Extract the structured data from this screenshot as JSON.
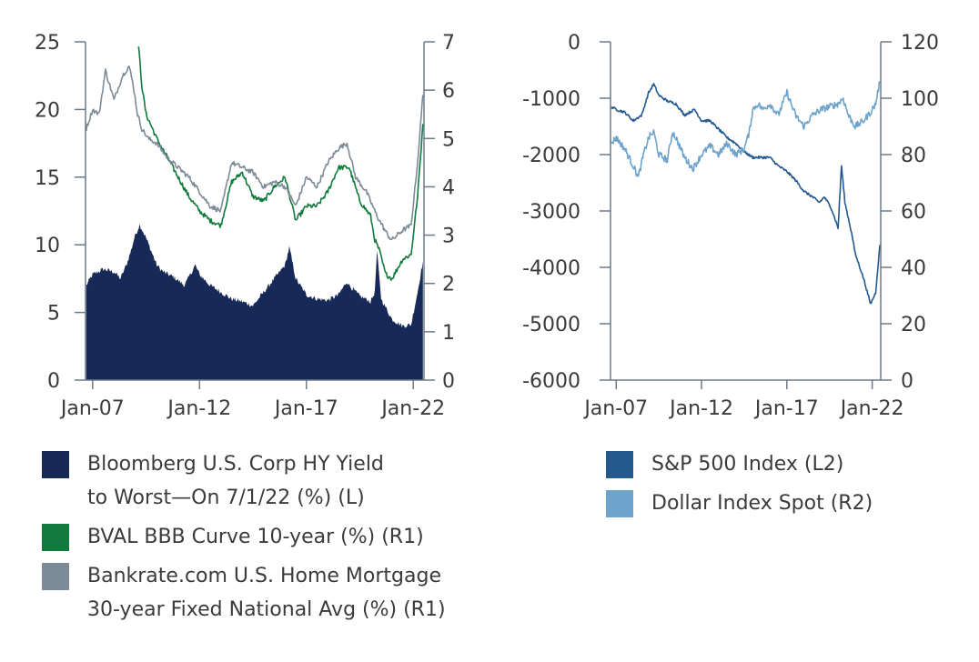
{
  "colors": {
    "hy_yield": "#172a57",
    "bval": "#117a3d",
    "mortgage": "#7d8b98",
    "sp500": "#24598e",
    "dollar": "#6ea3cb",
    "axis": "#6d7b88"
  },
  "chart_data": [
    {
      "type": "line",
      "x_ticks": [
        "Jan-07",
        "Jan-12",
        "Jan-17",
        "Jan-22"
      ],
      "x_range": [
        "2006-09",
        "2022-07"
      ],
      "y_left": {
        "range": [
          0,
          25
        ],
        "ticks": [
          "0",
          "5",
          "10",
          "15",
          "20",
          "25"
        ]
      },
      "y_right": {
        "range": [
          0,
          7
        ],
        "ticks": [
          "0",
          "1",
          "2",
          "3",
          "4",
          "5",
          "6",
          "7"
        ]
      },
      "series": [
        {
          "name": "Bloomberg U.S. Corp HY Yield to Worst—On 7/1/22 (%) (L)",
          "axis": "left",
          "style": "area",
          "x": [
            2006.7,
            2007.0,
            2007.5,
            2008.0,
            2008.3,
            2008.6,
            2008.8,
            2008.95,
            2009.2,
            2009.5,
            2010.0,
            2010.3,
            2010.8,
            2011.3,
            2011.6,
            2011.8,
            2012.0,
            2012.5,
            2013.0,
            2013.5,
            2014.0,
            2014.5,
            2015.0,
            2015.5,
            2016.0,
            2016.2,
            2016.5,
            2017.0,
            2017.5,
            2018.0,
            2018.5,
            2018.9,
            2019.0,
            2019.5,
            2019.9,
            2020.0,
            2020.2,
            2020.3,
            2020.5,
            2021.0,
            2021.5,
            2021.9,
            2022.2,
            2022.45
          ],
          "y": [
            7.0,
            7.8,
            8.2,
            8.0,
            7.5,
            8.6,
            9.6,
            10.5,
            11.5,
            10.5,
            8.5,
            8.0,
            7.6,
            7.0,
            7.9,
            8.5,
            7.8,
            7.0,
            6.5,
            6.0,
            5.8,
            5.5,
            6.5,
            7.5,
            8.5,
            9.8,
            7.5,
            6.3,
            6.0,
            5.9,
            6.3,
            7.3,
            7.0,
            6.2,
            5.9,
            5.8,
            6.5,
            9.5,
            6.0,
            4.5,
            4.0,
            4.1,
            6.5,
            8.8
          ]
        },
        {
          "name": "BVAL BBB Curve 10-year (%) (R1)",
          "axis": "right",
          "style": "line",
          "x": [
            2009.15,
            2009.3,
            2009.5,
            2010.0,
            2010.5,
            2011.0,
            2011.5,
            2012.0,
            2012.5,
            2013.0,
            2013.5,
            2014.0,
            2014.5,
            2015.0,
            2015.5,
            2016.0,
            2016.5,
            2017.0,
            2017.5,
            2018.0,
            2018.5,
            2019.0,
            2019.5,
            2020.0,
            2020.2,
            2020.4,
            2020.7,
            2021.0,
            2021.5,
            2021.9,
            2022.2,
            2022.45
          ],
          "y": [
            6.9,
            6.1,
            5.5,
            5.0,
            4.6,
            4.2,
            3.8,
            3.5,
            3.3,
            3.2,
            4.1,
            4.3,
            3.8,
            3.7,
            4.0,
            4.2,
            3.3,
            3.6,
            3.6,
            3.9,
            4.4,
            4.4,
            3.7,
            3.4,
            2.9,
            2.7,
            2.2,
            2.1,
            2.5,
            2.6,
            3.8,
            5.3
          ]
        },
        {
          "name": "Bankrate.com U.S. Home Mortgage 30-year Fixed National Avg (%) (R1)",
          "axis": "right",
          "style": "line",
          "x": [
            2006.7,
            2007.0,
            2007.3,
            2007.6,
            2008.0,
            2008.4,
            2008.7,
            2008.9,
            2009.1,
            2009.3,
            2009.6,
            2010.0,
            2010.5,
            2011.0,
            2011.5,
            2012.0,
            2012.5,
            2013.0,
            2013.5,
            2014.0,
            2014.5,
            2015.0,
            2015.5,
            2016.0,
            2016.5,
            2017.0,
            2017.5,
            2018.0,
            2018.5,
            2018.9,
            2019.3,
            2019.8,
            2020.3,
            2020.8,
            2021.0,
            2021.5,
            2021.9,
            2022.2,
            2022.45
          ],
          "y": [
            5.2,
            5.6,
            5.5,
            6.4,
            5.8,
            6.3,
            6.5,
            6.1,
            5.5,
            5.2,
            5.0,
            4.9,
            4.6,
            4.4,
            4.2,
            3.9,
            3.6,
            3.5,
            4.5,
            4.4,
            4.3,
            4.0,
            4.1,
            4.0,
            3.6,
            4.2,
            4.0,
            4.5,
            4.8,
            4.9,
            4.2,
            3.9,
            3.4,
            3.0,
            2.9,
            3.1,
            3.2,
            4.5,
            5.9
          ]
        }
      ]
    },
    {
      "type": "line",
      "x_ticks": [
        "Jan-07",
        "Jan-12",
        "Jan-17",
        "Jan-22"
      ],
      "x_range": [
        "2006-09",
        "2022-07"
      ],
      "y_left": {
        "range": [
          -6000,
          0
        ],
        "ticks": [
          "-6000",
          "-5000",
          "-4000",
          "-3000",
          "-2000",
          "-1000",
          "0"
        ]
      },
      "y_right": {
        "range": [
          0,
          120
        ],
        "ticks": [
          "0",
          "20",
          "40",
          "60",
          "80",
          "100",
          "120"
        ]
      },
      "series": [
        {
          "name": "S&P 500 Index (L2)",
          "axis": "left",
          "style": "line",
          "x": [
            2006.7,
            2007.0,
            2007.5,
            2008.0,
            2008.5,
            2008.9,
            2009.2,
            2009.5,
            2010.0,
            2010.5,
            2011.0,
            2011.6,
            2012.0,
            2012.5,
            2013.0,
            2013.5,
            2014.0,
            2014.5,
            2015.0,
            2015.5,
            2016.0,
            2016.5,
            2017.0,
            2017.5,
            2018.0,
            2018.5,
            2018.9,
            2019.2,
            2019.6,
            2020.0,
            2020.2,
            2020.4,
            2020.8,
            2021.0,
            2021.5,
            2021.9,
            2022.2,
            2022.45
          ],
          "y": [
            -1150,
            -1200,
            -1250,
            -1400,
            -1300,
            -900,
            -750,
            -950,
            -1050,
            -1100,
            -1300,
            -1200,
            -1400,
            -1400,
            -1550,
            -1700,
            -1800,
            -1950,
            -2050,
            -2050,
            -2050,
            -2200,
            -2300,
            -2450,
            -2650,
            -2750,
            -2850,
            -2750,
            -2950,
            -3300,
            -2200,
            -2850,
            -3400,
            -3750,
            -4200,
            -4650,
            -4450,
            -3600
          ]
        },
        {
          "name": "Dollar Index Spot (R2)",
          "axis": "right",
          "style": "line",
          "x": [
            2006.7,
            2007.0,
            2007.5,
            2008.0,
            2008.3,
            2008.6,
            2008.9,
            2009.2,
            2009.5,
            2010.0,
            2010.3,
            2010.5,
            2011.0,
            2011.5,
            2012.0,
            2012.5,
            2013.0,
            2013.5,
            2014.0,
            2014.5,
            2014.8,
            2015.0,
            2015.3,
            2015.6,
            2016.0,
            2016.5,
            2017.0,
            2017.5,
            2018.0,
            2018.5,
            2019.0,
            2019.5,
            2020.0,
            2020.3,
            2020.6,
            2021.0,
            2021.5,
            2021.9,
            2022.2,
            2022.45
          ],
          "y": [
            84,
            86,
            82,
            76,
            72,
            80,
            86,
            88,
            80,
            78,
            88,
            86,
            79,
            75,
            80,
            83,
            80,
            84,
            80,
            82,
            88,
            96,
            98,
            96,
            98,
            94,
            102,
            94,
            90,
            94,
            96,
            97,
            98,
            100,
            94,
            90,
            92,
            95,
            98,
            106
          ]
        }
      ]
    }
  ]
}
